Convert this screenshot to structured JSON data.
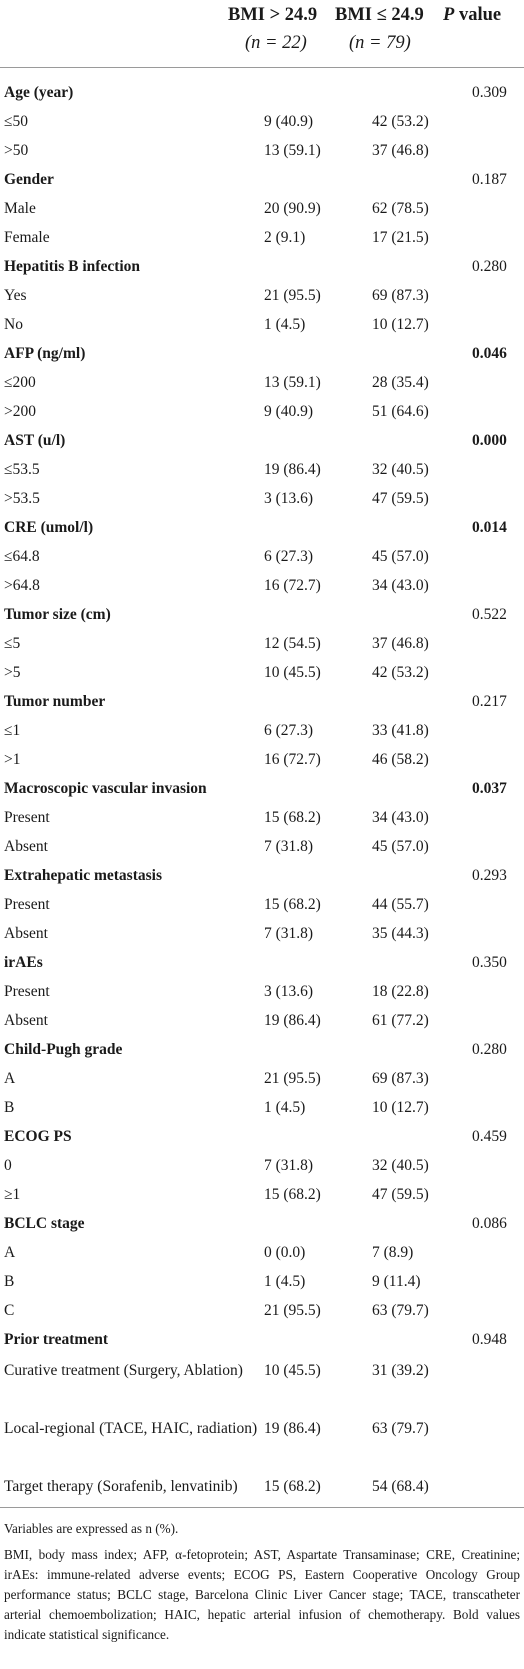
{
  "header": {
    "col1_line1": "BMI > 24.9",
    "col1_n": "(n = 22)",
    "col2_line1": "BMI ≤ 24.9",
    "col2_n": "(n = 79)",
    "col3_p": "P",
    "col3_rest": " value"
  },
  "rows": [
    {
      "label": "Age (year)",
      "v1": "",
      "v2": "",
      "p": "0.309",
      "header": true,
      "pbold": false
    },
    {
      "label": "≤50",
      "v1": "9 (40.9)",
      "v2": "42 (53.2)",
      "p": ""
    },
    {
      "label": ">50",
      "v1": "13 (59.1)",
      "v2": "37 (46.8)",
      "p": ""
    },
    {
      "label": "Gender",
      "v1": "",
      "v2": "",
      "p": "0.187",
      "header": true,
      "pbold": false
    },
    {
      "label": "Male",
      "v1": "20 (90.9)",
      "v2": "62 (78.5)",
      "p": ""
    },
    {
      "label": "Female",
      "v1": "2 (9.1)",
      "v2": "17 (21.5)",
      "p": ""
    },
    {
      "label": "Hepatitis B infection",
      "v1": "",
      "v2": "",
      "p": "0.280",
      "header": true,
      "pbold": false
    },
    {
      "label": "Yes",
      "v1": "21 (95.5)",
      "v2": "69 (87.3)",
      "p": ""
    },
    {
      "label": "No",
      "v1": "1 (4.5)",
      "v2": "10 (12.7)",
      "p": ""
    },
    {
      "label": "AFP (ng/ml)",
      "v1": "",
      "v2": "",
      "p": "0.046",
      "header": true,
      "pbold": true
    },
    {
      "label": "≤200",
      "v1": "13 (59.1)",
      "v2": "28 (35.4)",
      "p": ""
    },
    {
      "label": ">200",
      "v1": "9 (40.9)",
      "v2": "51 (64.6)",
      "p": ""
    },
    {
      "label": "AST (u/l)",
      "v1": "",
      "v2": "",
      "p": "0.000",
      "header": true,
      "pbold": true
    },
    {
      "label": "≤53.5",
      "v1": "19 (86.4)",
      "v2": "32 (40.5)",
      "p": ""
    },
    {
      "label": ">53.5",
      "v1": "3 (13.6)",
      "v2": "47 (59.5)",
      "p": ""
    },
    {
      "label": "CRE (umol/l)",
      "v1": "",
      "v2": "",
      "p": "0.014",
      "header": true,
      "pbold": true
    },
    {
      "label": "≤64.8",
      "v1": "6 (27.3)",
      "v2": "45 (57.0)",
      "p": ""
    },
    {
      "label": ">64.8",
      "v1": "16 (72.7)",
      "v2": "34 (43.0)",
      "p": ""
    },
    {
      "label": "Tumor size (cm)",
      "v1": "",
      "v2": "",
      "p": "0.522",
      "header": true,
      "pbold": false
    },
    {
      "label": "≤5",
      "v1": "12 (54.5)",
      "v2": "37 (46.8)",
      "p": ""
    },
    {
      "label": ">5",
      "v1": "10 (45.5)",
      "v2": "42 (53.2)",
      "p": ""
    },
    {
      "label": "Tumor number",
      "v1": "",
      "v2": "",
      "p": "0.217",
      "header": true,
      "pbold": false
    },
    {
      "label": "≤1",
      "v1": "6 (27.3)",
      "v2": "33 (41.8)",
      "p": ""
    },
    {
      "label": ">1",
      "v1": "16 (72.7)",
      "v2": "46 (58.2)",
      "p": ""
    },
    {
      "label": "Macroscopic vascular invasion",
      "v1": "",
      "v2": "",
      "p": "0.037",
      "header": true,
      "pbold": true
    },
    {
      "label": "Present",
      "v1": "15 (68.2)",
      "v2": "34 (43.0)",
      "p": ""
    },
    {
      "label": "Absent",
      "v1": "7 (31.8)",
      "v2": "45 (57.0)",
      "p": ""
    },
    {
      "label": "Extrahepatic metastasis",
      "v1": "",
      "v2": "",
      "p": "0.293",
      "header": true,
      "pbold": false
    },
    {
      "label": "Present",
      "v1": "15 (68.2)",
      "v2": "44 (55.7)",
      "p": ""
    },
    {
      "label": "Absent",
      "v1": "7 (31.8)",
      "v2": "35 (44.3)",
      "p": ""
    },
    {
      "label": "irAEs",
      "v1": "",
      "v2": "",
      "p": "0.350",
      "header": true,
      "pbold": false
    },
    {
      "label": "Present",
      "v1": "3 (13.6)",
      "v2": "18 (22.8)",
      "p": ""
    },
    {
      "label": "Absent",
      "v1": "19 (86.4)",
      "v2": "61 (77.2)",
      "p": ""
    },
    {
      "label": "Child-Pugh grade",
      "v1": "",
      "v2": "",
      "p": "0.280",
      "header": true,
      "pbold": false
    },
    {
      "label": "A",
      "v1": "21 (95.5)",
      "v2": "69 (87.3)",
      "p": ""
    },
    {
      "label": "B",
      "v1": "1 (4.5)",
      "v2": "10 (12.7)",
      "p": ""
    },
    {
      "label": "ECOG PS",
      "v1": "",
      "v2": "",
      "p": "0.459",
      "header": true,
      "pbold": false
    },
    {
      "label": "0",
      "v1": "7 (31.8)",
      "v2": "32 (40.5)",
      "p": ""
    },
    {
      "label": "≥1",
      "v1": "15 (68.2)",
      "v2": "47 (59.5)",
      "p": ""
    },
    {
      "label": "BCLC stage",
      "v1": "",
      "v2": "",
      "p": "0.086",
      "header": true,
      "pbold": false
    },
    {
      "label": "A",
      "v1": "0 (0.0)",
      "v2": "7 (8.9)",
      "p": ""
    },
    {
      "label": "B",
      "v1": "1 (4.5)",
      "v2": "9 (11.4)",
      "p": ""
    },
    {
      "label": "C",
      "v1": "21 (95.5)",
      "v2": "63 (79.7)",
      "p": ""
    },
    {
      "label": "Prior treatment",
      "v1": "",
      "v2": "",
      "p": "0.948",
      "header": true,
      "pbold": false
    },
    {
      "label": "Curative treatment (Surgery, Ablation)",
      "v1": "10 (45.5)",
      "v2": "31 (39.2)",
      "p": "",
      "wrap": true
    },
    {
      "label": "Local-regional (TACE, HAIC, radiation)",
      "v1": "19 (86.4)",
      "v2": "63 (79.7)",
      "p": "",
      "wrap": true
    },
    {
      "label": "Target therapy (Sorafenib, lenvatinib)",
      "v1": "15 (68.2)",
      "v2": "54 (68.4)",
      "p": "",
      "wrap": true
    }
  ],
  "footnote": {
    "line1": "Variables are expressed as n (%).",
    "line2": "BMI, body mass index; AFP, α-fetoprotein; AST, Aspartate Transaminase; CRE, Creatinine; irAEs: immune-related adverse events; ECOG PS, Eastern Cooperative Oncology Group performance status; BCLC stage, Barcelona Clinic Liver Cancer stage; TACE, transcatheter arterial chemoembolization; HAIC, hepatic arterial infusion of chemotherapy. Bold values indicate statistical significance."
  }
}
